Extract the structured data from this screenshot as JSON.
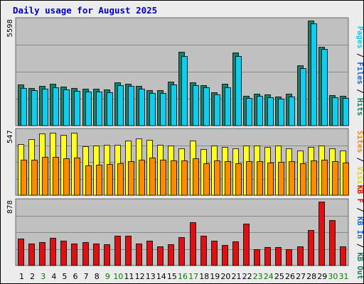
{
  "title": "Daily usage for August 2025",
  "colors": {
    "background": "#ececec",
    "title": "#0000bb",
    "plot_bg": "#c0c0c0",
    "grid": "#888888",
    "hits": "#14806a",
    "files": "#11ccee",
    "visits": "#ffff22",
    "sites": "#ff8c00",
    "kb": "#dd1111",
    "weekend_label": "#008000",
    "weekday_label": "#000000"
  },
  "chart_data": [
    {
      "type": "bar",
      "panel": "top",
      "y_max_label": "5598",
      "ylim": [
        0,
        5598
      ],
      "side_label": [
        {
          "text": "Pages",
          "color": "#11ccee"
        },
        {
          "text": " / ",
          "color": "#000000"
        },
        {
          "text": "Files",
          "color": "#1166ee"
        },
        {
          "text": " / ",
          "color": "#000000"
        },
        {
          "text": "Hits",
          "color": "#14806a"
        }
      ],
      "categories": [
        "1",
        "2",
        "3",
        "4",
        "5",
        "6",
        "7",
        "8",
        "9",
        "10",
        "11",
        "12",
        "13",
        "14",
        "15",
        "16",
        "17",
        "18",
        "19",
        "20",
        "21",
        "22",
        "23",
        "24",
        "25",
        "26",
        "27",
        "28",
        "29",
        "30",
        "31"
      ],
      "series": [
        {
          "name": "Hits",
          "color": "#14806a",
          "values": [
            2180,
            1960,
            2100,
            2200,
            2040,
            1960,
            1930,
            1950,
            1890,
            2280,
            2200,
            2080,
            1880,
            1870,
            2300,
            3870,
            2260,
            2120,
            1750,
            2190,
            3850,
            1550,
            1690,
            1640,
            1530,
            1670,
            3190,
            5520,
            4150,
            1610,
            1580
          ]
        },
        {
          "name": "Files",
          "color": "#11ccee",
          "values": [
            1960,
            1850,
            1940,
            2020,
            1920,
            1830,
            1790,
            1810,
            1750,
            2130,
            2080,
            1940,
            1730,
            1700,
            2150,
            3660,
            2130,
            2010,
            1640,
            2030,
            3650,
            1440,
            1580,
            1510,
            1430,
            1540,
            3010,
            5360,
            4020,
            1480,
            1460
          ]
        }
      ]
    },
    {
      "type": "bar",
      "panel": "middle",
      "y_max_label": "547",
      "ylim": [
        0,
        547
      ],
      "side_label": [
        {
          "text": "Sites",
          "color": "#ff8c00"
        },
        {
          "text": " / ",
          "color": "#000000"
        },
        {
          "text": "Visits",
          "color": "#dddd00"
        }
      ],
      "categories": [
        "1",
        "2",
        "3",
        "4",
        "5",
        "6",
        "7",
        "8",
        "9",
        "10",
        "11",
        "12",
        "13",
        "14",
        "15",
        "16",
        "17",
        "18",
        "19",
        "20",
        "21",
        "22",
        "23",
        "24",
        "25",
        "26",
        "27",
        "28",
        "29",
        "30",
        "31"
      ],
      "series": [
        {
          "name": "Visits",
          "color": "#ffff22",
          "values": [
            430,
            470,
            520,
            525,
            505,
            525,
            410,
            415,
            425,
            425,
            455,
            475,
            465,
            425,
            415,
            395,
            455,
            385,
            415,
            405,
            395,
            415,
            415,
            405,
            415,
            395,
            375,
            405,
            415,
            395,
            375
          ]
        },
        {
          "name": "Sites",
          "color": "#ff8c00",
          "values": [
            295,
            300,
            320,
            320,
            310,
            315,
            250,
            255,
            260,
            265,
            285,
            300,
            315,
            295,
            290,
            290,
            310,
            270,
            290,
            285,
            270,
            285,
            285,
            275,
            280,
            285,
            270,
            290,
            300,
            285,
            275
          ]
        }
      ]
    },
    {
      "type": "bar",
      "panel": "bottom",
      "y_max_label": "878",
      "ylim": [
        0,
        878
      ],
      "side_label": [
        {
          "text": "KB F",
          "color": "#dd1111"
        },
        {
          "text": " / ",
          "color": "#000000"
        },
        {
          "text": "KB In",
          "color": "#1166ee"
        },
        {
          "text": " / ",
          "color": "#000000"
        },
        {
          "text": "KB Out",
          "color": "#14806a"
        }
      ],
      "categories": [
        "1",
        "2",
        "3",
        "4",
        "5",
        "6",
        "7",
        "8",
        "9",
        "10",
        "11",
        "12",
        "13",
        "14",
        "15",
        "16",
        "17",
        "18",
        "19",
        "20",
        "21",
        "22",
        "23",
        "24",
        "25",
        "26",
        "27",
        "28",
        "29",
        "30",
        "31"
      ],
      "series": [
        {
          "name": "KB F",
          "color": "#dd1111",
          "values": [
            360,
            295,
            315,
            375,
            330,
            295,
            315,
            295,
            285,
            400,
            400,
            295,
            335,
            255,
            290,
            380,
            580,
            400,
            330,
            275,
            325,
            560,
            220,
            250,
            245,
            220,
            255,
            480,
            860,
            615,
            255
          ]
        }
      ]
    }
  ],
  "x_labels": [
    {
      "t": "1",
      "w": false
    },
    {
      "t": "2",
      "w": false
    },
    {
      "t": "3",
      "w": true
    },
    {
      "t": "4",
      "w": false
    },
    {
      "t": "5",
      "w": false
    },
    {
      "t": "6",
      "w": false
    },
    {
      "t": "7",
      "w": false
    },
    {
      "t": "8",
      "w": false
    },
    {
      "t": "9",
      "w": true
    },
    {
      "t": "10",
      "w": true
    },
    {
      "t": "11",
      "w": false
    },
    {
      "t": "12",
      "w": false
    },
    {
      "t": "13",
      "w": false
    },
    {
      "t": "14",
      "w": false
    },
    {
      "t": "15",
      "w": false
    },
    {
      "t": "16",
      "w": true
    },
    {
      "t": "17",
      "w": true
    },
    {
      "t": "18",
      "w": false
    },
    {
      "t": "19",
      "w": false
    },
    {
      "t": "20",
      "w": false
    },
    {
      "t": "21",
      "w": false
    },
    {
      "t": "22",
      "w": false
    },
    {
      "t": "23",
      "w": true
    },
    {
      "t": "24",
      "w": true
    },
    {
      "t": "25",
      "w": false
    },
    {
      "t": "26",
      "w": false
    },
    {
      "t": "27",
      "w": false
    },
    {
      "t": "28",
      "w": false
    },
    {
      "t": "29",
      "w": false
    },
    {
      "t": "30",
      "w": true
    },
    {
      "t": "31",
      "w": true
    }
  ]
}
